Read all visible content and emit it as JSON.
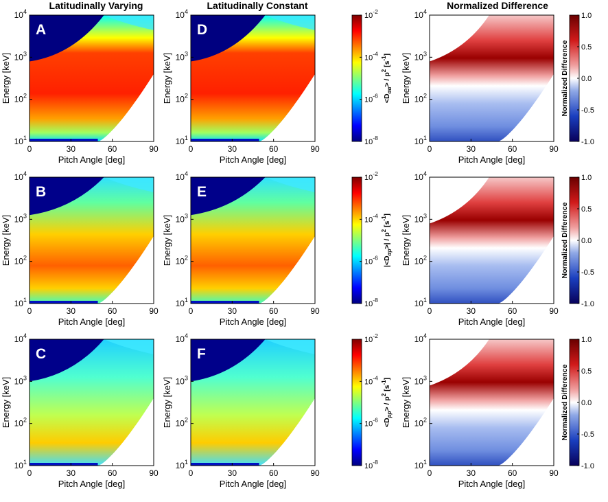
{
  "columns": [
    {
      "title": "Latitudinally Varying"
    },
    {
      "title": "Latitudinally Constant"
    },
    {
      "title": "Normalized Difference"
    }
  ],
  "colors": {
    "jet": [
      "#00007f",
      "#0000ff",
      "#007fff",
      "#00ffff",
      "#7fff7f",
      "#ffff00",
      "#ff7f00",
      "#ff0000",
      "#7f0000"
    ],
    "diverging": [
      "#08005a",
      "#1a3fbf",
      "#8fa8e6",
      "#ffffff",
      "#f0a0a0",
      "#d11a1a",
      "#6a0000"
    ],
    "background": "#ffffff"
  },
  "chart_data": [
    {
      "id": "A",
      "type": "heatmap",
      "quantity": "<D_aa>/p^2",
      "scenario": "Latitudinally Varying",
      "xlabel": "Pitch Angle [deg]",
      "ylabel": "Energy [keV]",
      "xlim": [
        0,
        90
      ],
      "ylim": [
        10,
        10000
      ],
      "yscale": "log",
      "xticks": [
        "0",
        "30",
        "60",
        "90"
      ],
      "yticks": [
        "10",
        "10",
        "10",
        "10"
      ],
      "yexps": [
        "1",
        "2",
        "3",
        "4"
      ]
    },
    {
      "id": "D",
      "type": "heatmap",
      "quantity": "<D_aa>/p^2",
      "scenario": "Latitudinally Constant",
      "xlabel": "Pitch Angle [deg]",
      "ylabel": "Energy [keV]",
      "xlim": [
        0,
        90
      ],
      "ylim": [
        10,
        10000
      ],
      "yscale": "log"
    },
    {
      "id": "G",
      "type": "heatmap",
      "quantity": "Normalized Difference",
      "xlabel": "Pitch Angle [deg]",
      "ylabel": "Energy [keV]",
      "xlim": [
        0,
        90
      ],
      "ylim": [
        10,
        10000
      ],
      "yscale": "log",
      "clim": [
        -1,
        1
      ]
    },
    {
      "id": "B",
      "type": "heatmap",
      "quantity": "|<D_ap>|/p^2",
      "scenario": "Latitudinally Varying",
      "xlabel": "Pitch Angle [deg]",
      "ylabel": "Energy [keV]",
      "xlim": [
        0,
        90
      ],
      "ylim": [
        10,
        10000
      ],
      "yscale": "log"
    },
    {
      "id": "E",
      "type": "heatmap",
      "quantity": "|<D_ap>|/p^2",
      "scenario": "Latitudinally Constant",
      "xlabel": "Pitch Angle [deg]",
      "ylabel": "Energy [keV]",
      "xlim": [
        0,
        90
      ],
      "ylim": [
        10,
        10000
      ],
      "yscale": "log"
    },
    {
      "id": "H",
      "type": "heatmap",
      "quantity": "Normalized Difference",
      "xlabel": "Pitch Angle [deg]",
      "ylabel": "Energy [keV]",
      "xlim": [
        0,
        90
      ],
      "ylim": [
        10,
        10000
      ],
      "yscale": "log",
      "clim": [
        -1,
        1
      ]
    },
    {
      "id": "C",
      "type": "heatmap",
      "quantity": "<D_pp>/p^2",
      "scenario": "Latitudinally Varying",
      "xlabel": "Pitch Angle [deg]",
      "ylabel": "Energy [keV]",
      "xlim": [
        0,
        90
      ],
      "ylim": [
        10,
        10000
      ],
      "yscale": "log"
    },
    {
      "id": "F",
      "type": "heatmap",
      "quantity": "<D_pp>/p^2",
      "scenario": "Latitudinally Constant",
      "xlabel": "Pitch Angle [deg]",
      "ylabel": "Energy [keV]",
      "xlim": [
        0,
        90
      ],
      "ylim": [
        10,
        10000
      ],
      "yscale": "log"
    },
    {
      "id": "I",
      "type": "heatmap",
      "quantity": "Normalized Difference",
      "xlabel": "Pitch Angle [deg]",
      "ylabel": "Energy [keV]",
      "xlim": [
        0,
        90
      ],
      "ylim": [
        10,
        10000
      ],
      "yscale": "log",
      "clim": [
        -1,
        1
      ]
    }
  ],
  "axes": {
    "xlabel": "Pitch Angle [deg]",
    "ylabel": "Energy [keV]",
    "xticks": [
      "0",
      "30",
      "60",
      "90"
    ],
    "ybase": "10",
    "yexps": [
      "1",
      "2",
      "3",
      "4"
    ]
  },
  "colorbars": [
    {
      "row": 1,
      "label_main": "<D",
      "label_sub": "αα",
      "label_rest": "> / p",
      "label_exp": "2",
      "label_unit": " [s",
      "label_unit_exp": "-1",
      "label_close": "]",
      "ticks_base": "10",
      "ticks_exp": [
        "-2",
        "-4",
        "-6",
        "-8"
      ]
    },
    {
      "row": 2,
      "label_main": "|<D",
      "label_sub": "αp",
      "label_rest": ">| / p",
      "label_exp": "2",
      "label_unit": " [s",
      "label_unit_exp": "-1",
      "label_close": "]",
      "ticks_base": "10",
      "ticks_exp": [
        "-2",
        "-4",
        "-6",
        "-8"
      ]
    },
    {
      "row": 3,
      "label_main": "<D",
      "label_sub": "pp",
      "label_rest": "> / p",
      "label_exp": "2",
      "label_unit": " [s",
      "label_unit_exp": "-1",
      "label_close": "]",
      "ticks_base": "10",
      "ticks_exp": [
        "-2",
        "-4",
        "-6",
        "-8"
      ]
    }
  ],
  "diff_colorbar": {
    "label": "Normalized Difference",
    "ticks": [
      "1.0",
      "0.5",
      "0.0",
      "-0.5",
      "-1.0"
    ]
  }
}
